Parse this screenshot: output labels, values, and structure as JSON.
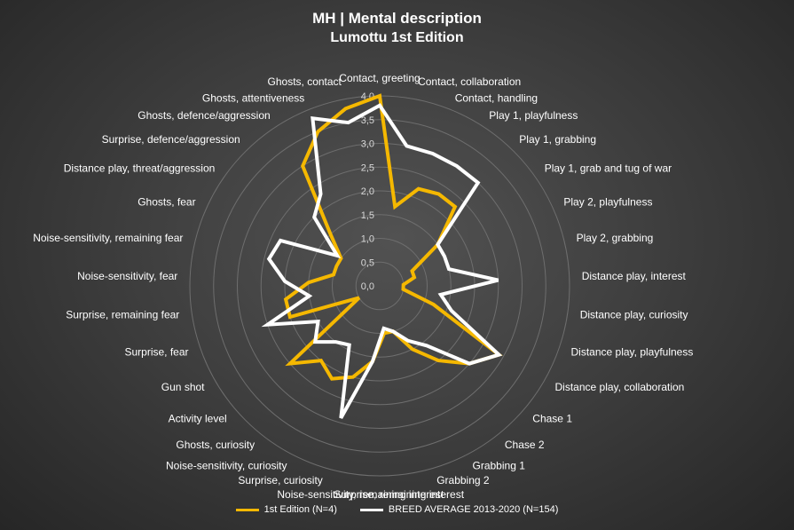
{
  "chart_data": {
    "type": "radar",
    "title": "MH | Mental description",
    "subtitle": "Lumottu 1st Edition",
    "rmax": 4.0,
    "ticks": [
      "0,0",
      "0,5",
      "1,0",
      "1,5",
      "2,0",
      "2,5",
      "3,0",
      "3,5",
      "4,0"
    ],
    "grid": true,
    "legend_position": "bottom",
    "categories": [
      "Contact, greeting",
      "Contact, collaboration",
      "Contact, handling",
      "Play 1, playfulness",
      "Play 1, grabbing",
      "Play 1, grab and tug of war",
      "Play 2, playfulness",
      "Play 2, grabbing",
      "Distance play, interest",
      "Distance play, curiosity",
      "Distance play, playfulness",
      "Distance play, collaboration",
      "Chase 1",
      "Chase 2",
      "Grabbing 1",
      "Grabbing 2",
      "Surprise, remaining interest",
      "Noise-sensitivity, remaining interest",
      "Surprise, curiosity",
      "Noise-sensitivity, curiosity",
      "Ghosts, curiosity",
      "Activity level",
      "Gun shot",
      "Surprise, fear",
      "Surprise, remaining fear",
      "Noise-sensitivity, fear",
      "Noise-sensitivity, remaining fear",
      "Ghosts, fear",
      "Distance play, threat/aggression",
      "Surprise, defence/aggression",
      "Ghosts, defence/aggression",
      "Ghosts, attentiveness",
      "Ghosts, contact"
    ],
    "series": [
      {
        "name": "1st Edition (N=4)",
        "color": "#f5b800",
        "values": [
          4.0,
          1.7,
          2.2,
          2.3,
          2.3,
          1.5,
          0.75,
          0.75,
          0.5,
          0.5,
          1.2,
          2.9,
          2.5,
          2.0,
          1.5,
          1.0,
          1.0,
          1.6,
          2.0,
          2.2,
          2.0,
          2.5,
          0.5,
          2.0,
          2.0,
          1.5,
          1.0,
          1.0,
          1.0,
          1.5,
          3.0,
          3.5,
          3.8
        ]
      },
      {
        "name": "BREED AVERAGE 2013-2020 (N=154)",
        "color": "#ffffff",
        "values": [
          3.8,
          3.0,
          3.0,
          3.0,
          3.0,
          1.5,
          1.5,
          1.5,
          2.5,
          1.3,
          1.6,
          2.9,
          2.5,
          1.6,
          1.3,
          1.0,
          0.9,
          1.6,
          2.9,
          1.4,
          1.5,
          1.8,
          1.5,
          2.5,
          1.5,
          2.0,
          2.4,
          2.3,
          1.1,
          2.0,
          2.3,
          3.8,
          3.5
        ]
      }
    ]
  }
}
